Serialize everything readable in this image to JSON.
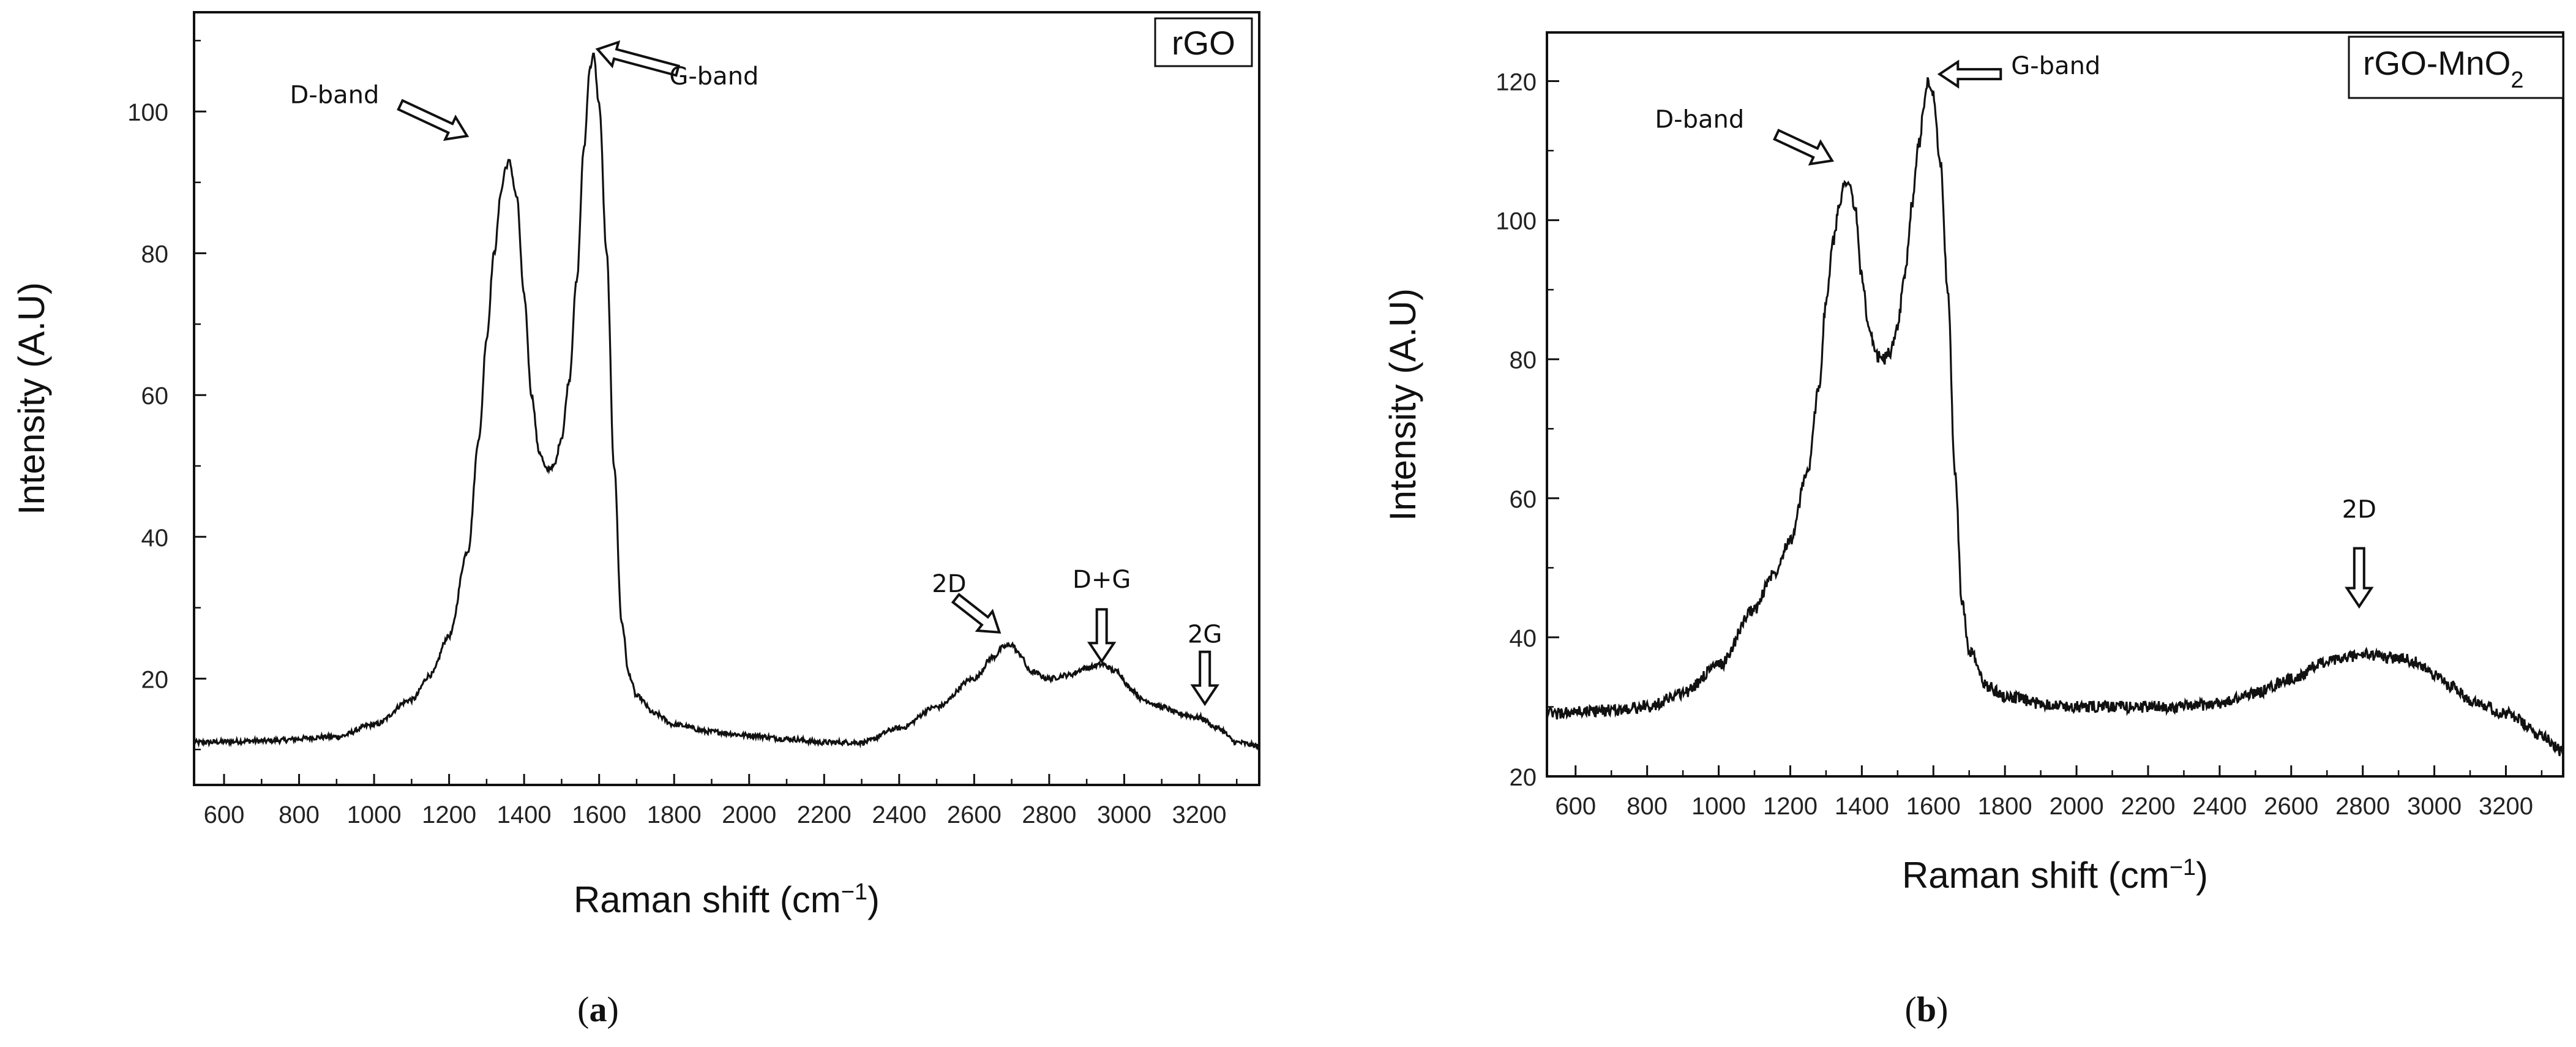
{
  "chart_data": [
    {
      "type": "line",
      "panel": "(a)",
      "panel_letter": "a",
      "legend_label": "rGO",
      "legend_position": "top-right",
      "xlabel": "Raman shift (cm",
      "xlabel_sup": "−1",
      "xlabel_close": ")",
      "ylabel": "Intensity (A.U)",
      "xlim": [
        520,
        3360
      ],
      "ylim": [
        5,
        114
      ],
      "xticks": [
        600,
        800,
        1000,
        1200,
        1400,
        1600,
        1800,
        2000,
        2200,
        2400,
        2600,
        2800,
        3000,
        3200
      ],
      "yticks": [
        20,
        40,
        60,
        80,
        100
      ],
      "series": [
        {
          "name": "rGO",
          "x": [
            520,
            700,
            900,
            1000,
            1100,
            1150,
            1200,
            1250,
            1280,
            1300,
            1320,
            1340,
            1350,
            1360,
            1380,
            1400,
            1420,
            1440,
            1460,
            1480,
            1500,
            1520,
            1540,
            1560,
            1575,
            1585,
            1600,
            1620,
            1640,
            1660,
            1680,
            1700,
            1750,
            1800,
            1900,
            2000,
            2100,
            2200,
            2300,
            2400,
            2500,
            2600,
            2650,
            2680,
            2700,
            2720,
            2750,
            2800,
            2850,
            2900,
            2940,
            2980,
            3020,
            3050,
            3100,
            3150,
            3200,
            3250,
            3300,
            3360
          ],
          "y": [
            11.0,
            11.2,
            11.8,
            13.5,
            17.0,
            20.5,
            26.0,
            38.0,
            54.0,
            68.0,
            80.0,
            89.0,
            92.0,
            93.0,
            88.0,
            74.0,
            60.0,
            52.0,
            49.5,
            50.0,
            54.0,
            62.0,
            76.0,
            95.0,
            106.0,
            108.0,
            101.0,
            80.0,
            50.0,
            28.0,
            20.5,
            17.5,
            15.0,
            13.5,
            12.5,
            12.0,
            11.5,
            11.0,
            11.0,
            13.0,
            16.0,
            20.0,
            23.0,
            24.5,
            24.8,
            23.5,
            21.0,
            20.0,
            20.5,
            21.5,
            22.0,
            21.0,
            18.5,
            17.0,
            16.0,
            15.0,
            14.5,
            13.0,
            11.0,
            10.5
          ]
        }
      ],
      "annotations": [
        {
          "text": "D-band",
          "x": 1270,
          "y": 96
        },
        {
          "text": "G-band",
          "x": 1580,
          "y": 109
        },
        {
          "text": "2D",
          "x": 2680,
          "y": 26
        },
        {
          "text": "D+G",
          "x": 2940,
          "y": 22
        },
        {
          "text": "2G",
          "x": 3215,
          "y": 16
        }
      ]
    },
    {
      "type": "line",
      "panel": "(b)",
      "panel_letter": "b",
      "legend_label_main": "rGO-MnO",
      "legend_label_sub": "2",
      "legend_position": "top-right",
      "xlabel": "Raman shift (cm",
      "xlabel_sup": "−1",
      "xlabel_close": ")",
      "ylabel": "Intensity (A.U)",
      "xlim": [
        520,
        3360
      ],
      "ylim": [
        20,
        127
      ],
      "xticks": [
        600,
        800,
        1000,
        1200,
        1400,
        1600,
        1800,
        2000,
        2200,
        2400,
        2600,
        2800,
        3000,
        3200
      ],
      "yticks": [
        20,
        40,
        60,
        80,
        100,
        120
      ],
      "series": [
        {
          "name": "rGO-MnO2",
          "x": [
            520,
            700,
            800,
            900,
            1000,
            1100,
            1150,
            1200,
            1250,
            1280,
            1300,
            1320,
            1340,
            1350,
            1360,
            1380,
            1400,
            1420,
            1440,
            1460,
            1480,
            1500,
            1520,
            1540,
            1560,
            1575,
            1585,
            1600,
            1620,
            1640,
            1660,
            1680,
            1700,
            1750,
            1800,
            1900,
            2000,
            2100,
            2200,
            2300,
            2400,
            2500,
            2600,
            2700,
            2800,
            2900,
            2950,
            3000,
            3050,
            3100,
            3200,
            3300,
            3360
          ],
          "y": [
            29.0,
            29.5,
            30.0,
            32.0,
            36.0,
            44.0,
            49.0,
            54.0,
            64.0,
            76.0,
            88.0,
            97.0,
            103.0,
            105.0,
            106.0,
            102.0,
            92.0,
            84.0,
            80.5,
            80.0,
            81.0,
            85.0,
            92.0,
            102.0,
            111.0,
            117.0,
            120.0,
            118.0,
            108.0,
            90.0,
            64.0,
            45.0,
            38.0,
            33.0,
            31.5,
            30.5,
            30.0,
            30.0,
            30.0,
            30.0,
            30.5,
            32.0,
            34.0,
            36.5,
            37.5,
            37.0,
            36.5,
            34.5,
            33.0,
            31.0,
            29.0,
            26.0,
            23.5
          ]
        }
      ],
      "annotations": [
        {
          "text": "D-band",
          "x": 1340,
          "y": 108
        },
        {
          "text": "G-band",
          "x": 1600,
          "y": 121
        },
        {
          "text": "2D",
          "x": 2790,
          "y": 44
        }
      ]
    }
  ]
}
